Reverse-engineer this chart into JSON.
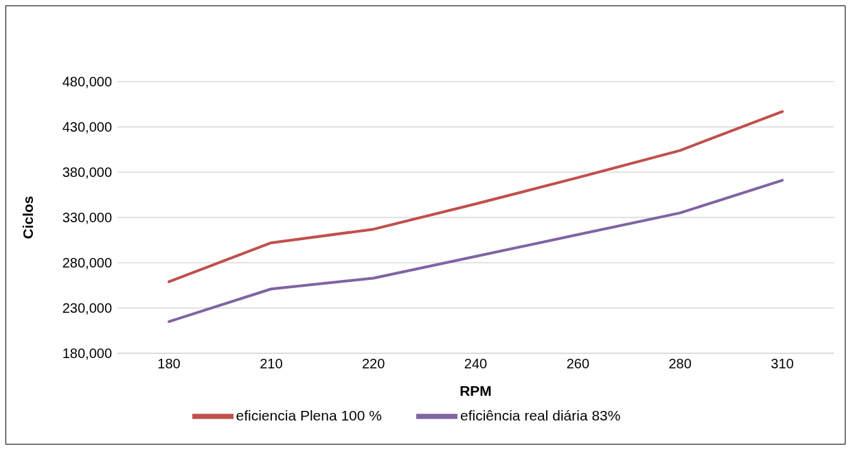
{
  "chart_data": {
    "type": "line",
    "xlabel": "RPM",
    "ylabel": "Ciclos",
    "categories": [
      "180",
      "210",
      "220",
      "240",
      "260",
      "280",
      "310"
    ],
    "series": [
      {
        "name": "eficiencia Plena 100 %",
        "color": "#c0504d",
        "values": [
          259000,
          302000,
          317000,
          345000,
          374000,
          404000,
          447000
        ]
      },
      {
        "name": "eficiência real diária 83%",
        "color": "#8064a2",
        "values": [
          215000,
          251000,
          263000,
          287000,
          311000,
          335000,
          371000
        ]
      }
    ],
    "ylim": [
      180000,
      480000
    ],
    "yticks": [
      {
        "value": 180000,
        "label": "180,000"
      },
      {
        "value": 230000,
        "label": "230,000"
      },
      {
        "value": 280000,
        "label": "280,000"
      },
      {
        "value": 330000,
        "label": "330,000"
      },
      {
        "value": 380000,
        "label": "380,000"
      },
      {
        "value": 430000,
        "label": "430,000"
      },
      {
        "value": 480000,
        "label": "480,000"
      }
    ],
    "grid": "y",
    "legend": "bottom",
    "marker": "none",
    "line_style": "solid"
  }
}
